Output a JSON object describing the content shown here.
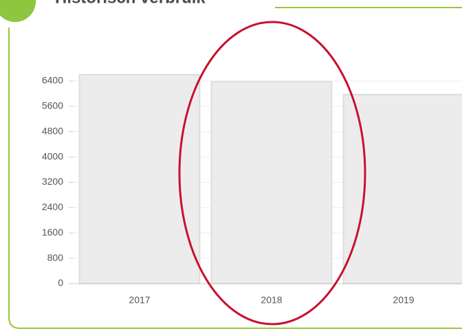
{
  "chart_data": {
    "type": "bar",
    "title": "Historisch verbruik",
    "categories": [
      "2017",
      "2018",
      "2019"
    ],
    "values": [
      6600,
      6380,
      5970
    ],
    "color": "#ececec",
    "ylim": [
      0,
      6400
    ],
    "yticks": [
      0,
      800,
      1600,
      2400,
      3200,
      4000,
      4800,
      5600,
      6400
    ],
    "grid": true
  }
}
